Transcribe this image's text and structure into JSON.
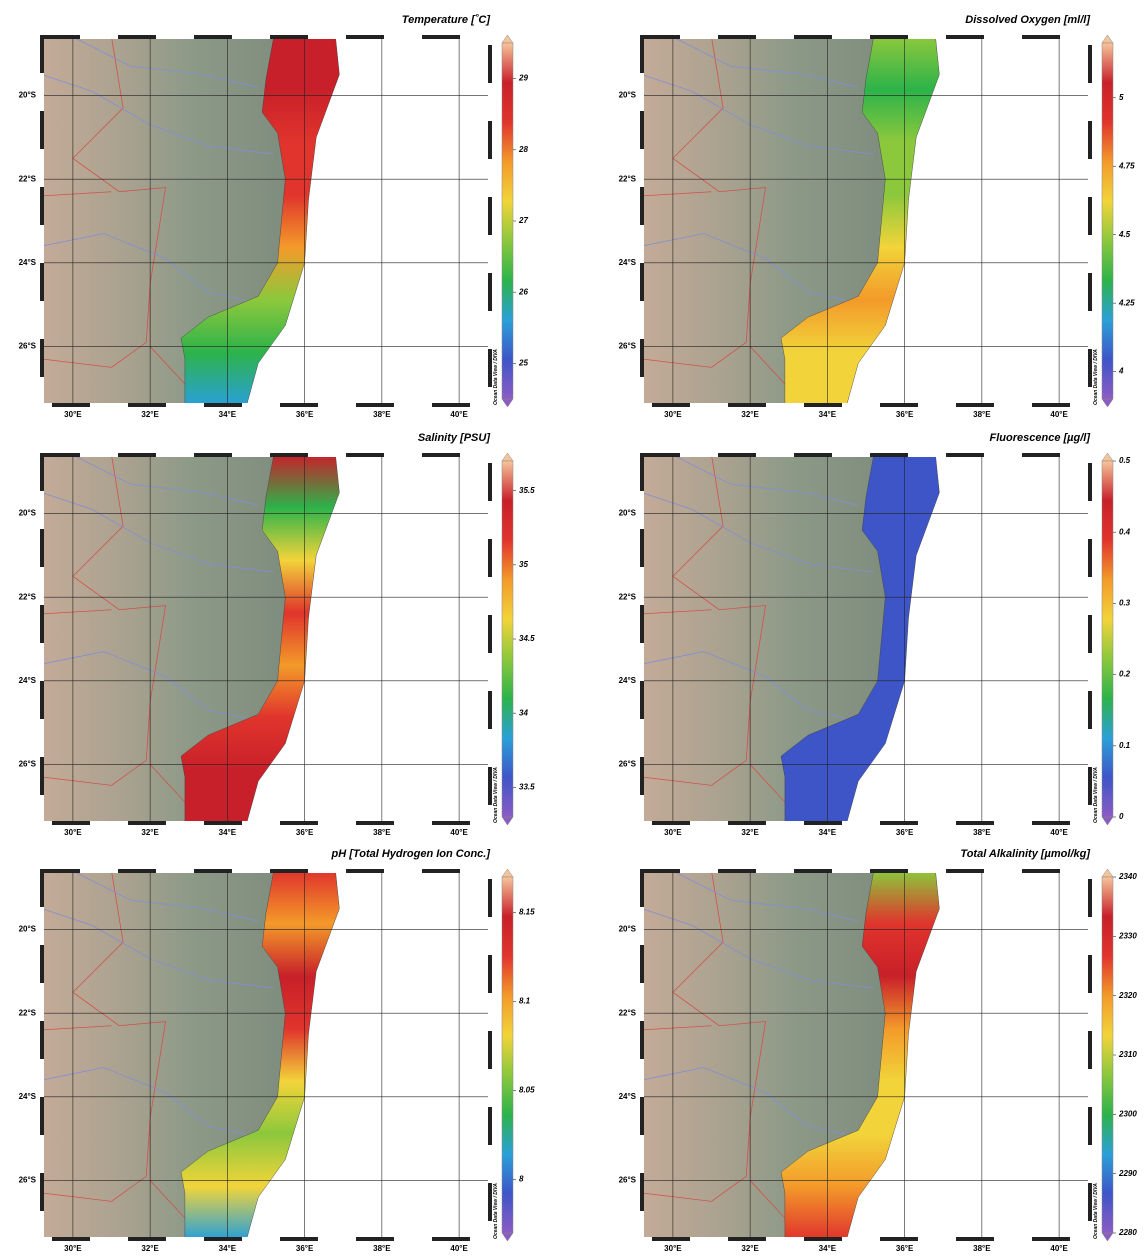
{
  "map": {
    "xlim": [
      29.2,
      40.8
    ],
    "ylim": [
      -27.4,
      -18.6
    ],
    "xticks": [
      {
        "value": 30,
        "label": "30°E"
      },
      {
        "value": 32,
        "label": "32°E"
      },
      {
        "value": 34,
        "label": "34°E"
      },
      {
        "value": 36,
        "label": "36°E"
      },
      {
        "value": 38,
        "label": "38°E"
      },
      {
        "value": 40,
        "label": "40°E"
      }
    ],
    "yticks": [
      {
        "value": -20,
        "label": "20°S"
      },
      {
        "value": -22,
        "label": "22°S"
      },
      {
        "value": -24,
        "label": "24°S"
      },
      {
        "value": -26,
        "label": "26°S"
      }
    ],
    "credit": "Ocean Data View / DIVA",
    "colormap": [
      "#8c5cc4",
      "#3e55c8",
      "#2aa0d8",
      "#2db34a",
      "#8cc83c",
      "#f2d43a",
      "#f39a2a",
      "#e0342c",
      "#c8202a",
      "#f6c49a"
    ]
  },
  "panels": [
    {
      "title": "Temperature [˚C]",
      "clim": [
        24.5,
        29.5
      ],
      "ticks": [
        25,
        26,
        27,
        28,
        29
      ]
    },
    {
      "title": "Dissolved Oxygen [ml/l]",
      "clim": [
        3.9,
        5.2
      ],
      "ticks": [
        4,
        4.25,
        4.5,
        4.75,
        5
      ]
    },
    {
      "title": "Salinity [PSU]",
      "clim": [
        33.3,
        35.7
      ],
      "ticks": [
        33.5,
        34,
        34.5,
        35,
        35.5
      ]
    },
    {
      "title": "Fluorescence [µg/l]",
      "clim": [
        0,
        0.5
      ],
      "ticks": [
        0,
        0.1,
        0.2,
        0.3,
        0.4,
        0.5
      ]
    },
    {
      "title": "pH [Total Hydrogen Ion Conc.]",
      "clim": [
        7.97,
        8.17
      ],
      "ticks": [
        8,
        8.05,
        8.1,
        8.15
      ]
    },
    {
      "title": "Total Alkalinity [µmol/kg]",
      "clim": [
        2280,
        2340
      ],
      "ticks": [
        2280,
        2290,
        2300,
        2310,
        2320,
        2330,
        2340
      ]
    }
  ]
}
